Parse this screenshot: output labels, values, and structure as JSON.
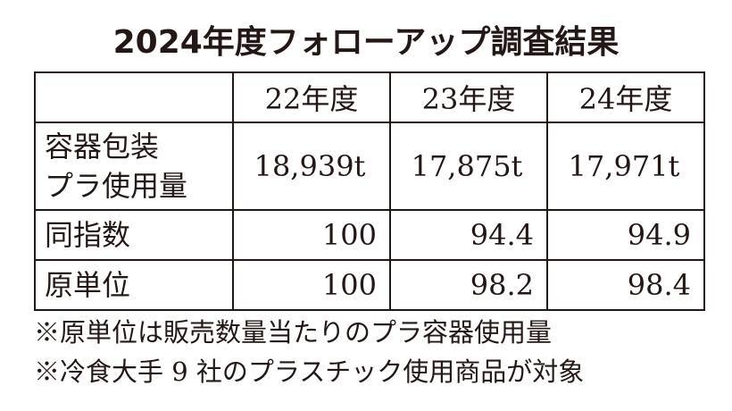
{
  "title": "2024年度フォローアップ調査結果",
  "table": {
    "columns": [
      "22年度",
      "23年度",
      "24年度"
    ],
    "rows": [
      {
        "label": [
          "容器包装",
          "プラ使用量"
        ],
        "cells": [
          "18,939t",
          "17,875t",
          "17,971t"
        ]
      },
      {
        "label": [
          "同指数"
        ],
        "cells": [
          "100",
          "94.4",
          "94.9"
        ]
      },
      {
        "label": [
          "原単位"
        ],
        "cells": [
          "100",
          "98.2",
          "98.4"
        ]
      }
    ]
  },
  "notes": [
    "※原単位は販売数量当たりのプラ容器使用量",
    "※冷食大手 9 社のプラスチック使用商品が対象"
  ]
}
